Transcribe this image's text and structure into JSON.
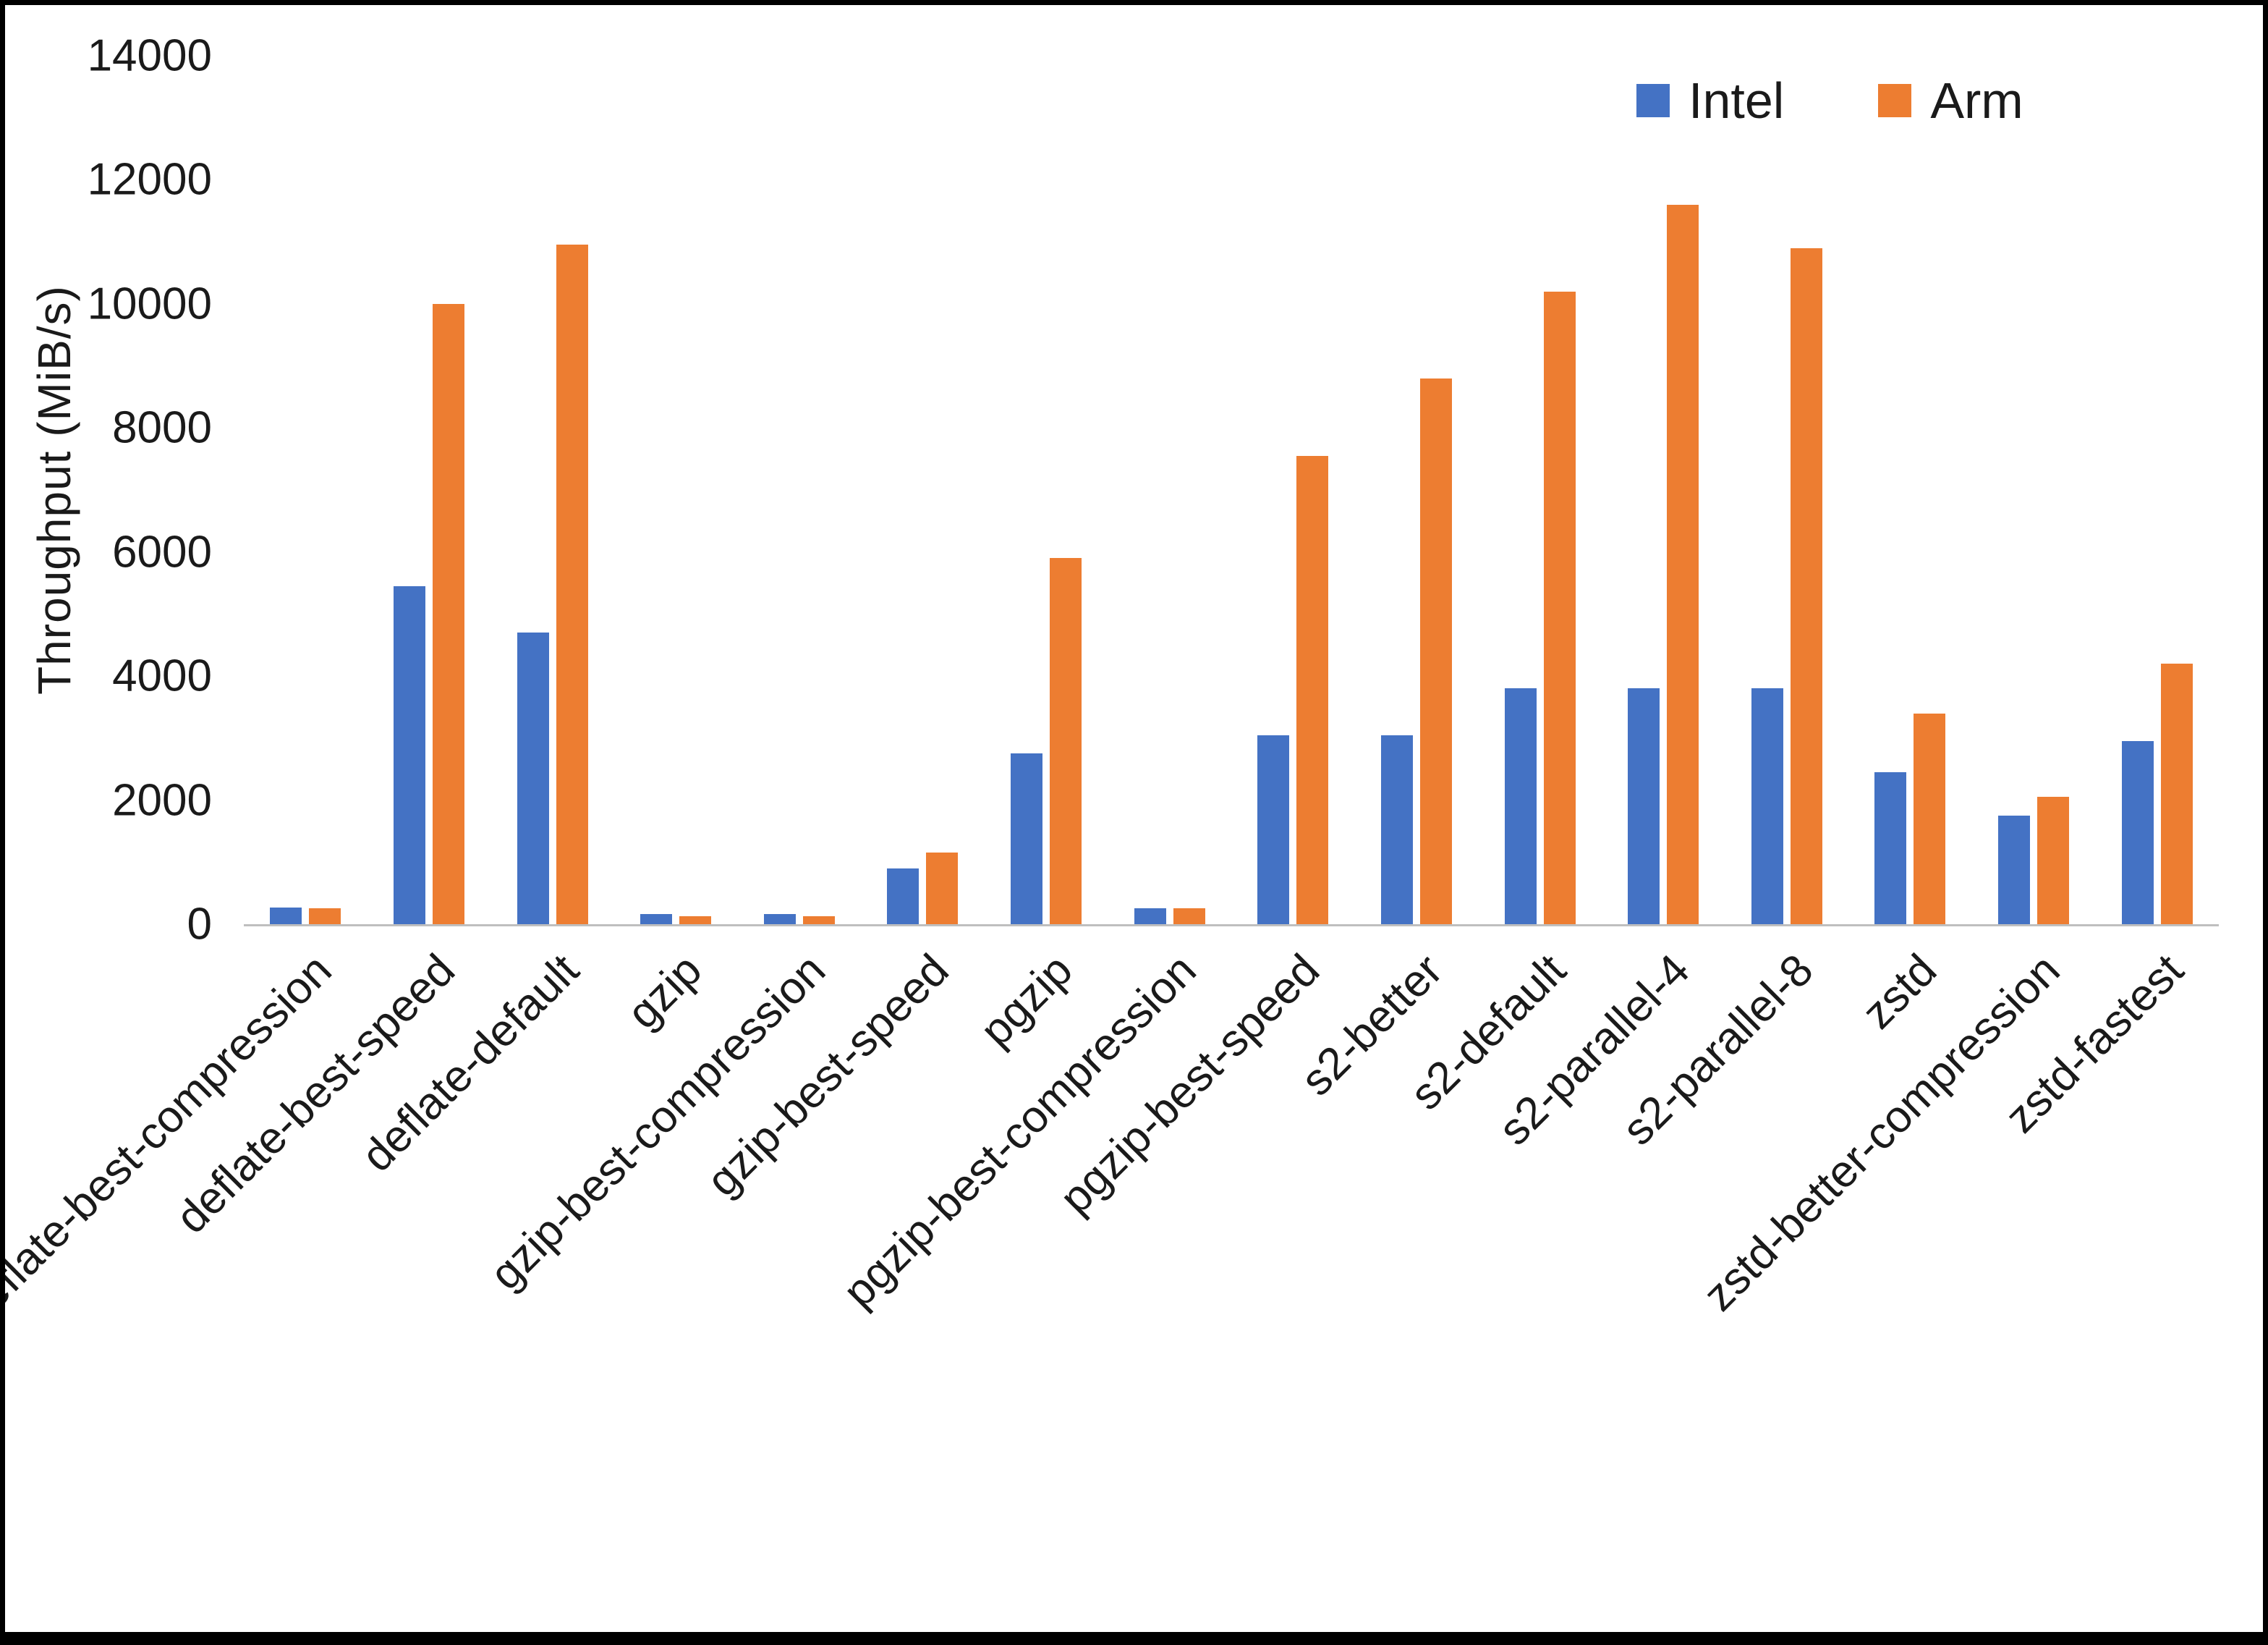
{
  "chart_data": {
    "type": "bar",
    "title": "",
    "xlabel": "",
    "ylabel": "Throughput (MiB/s)",
    "ylim": [
      0,
      14000
    ],
    "yticks": [
      0,
      2000,
      4000,
      6000,
      8000,
      10000,
      12000,
      14000
    ],
    "grid": false,
    "legend_position": "top-right",
    "categories": [
      "deflate-best-compression",
      "deflate-best-speed",
      "deflate-default",
      "gzip",
      "gzip-best-compression",
      "gzip-best-speed",
      "pgzip",
      "pgzip-best-compression",
      "pgzip-best-speed",
      "s2-better",
      "s2-default",
      "s2-parallel-4",
      "s2-parallel-8",
      "zstd",
      "zstd-better-compression",
      "zstd-fastest"
    ],
    "series": [
      {
        "name": "Intel",
        "color": "#4472C4",
        "values": [
          270,
          5450,
          4700,
          160,
          160,
          900,
          2750,
          260,
          3050,
          3050,
          3800,
          3800,
          3800,
          2450,
          1750,
          2950
        ]
      },
      {
        "name": "Arm",
        "color": "#ED7D31",
        "values": [
          260,
          10000,
          10950,
          130,
          130,
          1150,
          5900,
          260,
          7550,
          8800,
          10200,
          11600,
          10900,
          3400,
          2050,
          4200
        ]
      }
    ]
  }
}
